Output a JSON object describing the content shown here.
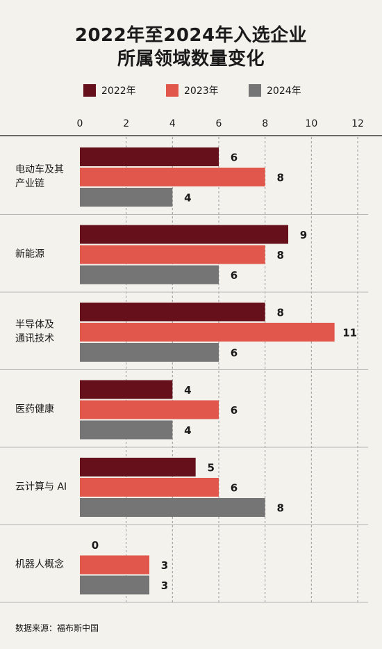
{
  "title_line1": "2022年至2024年入选企业",
  "title_line2": "所属领域数量变化",
  "source": "数据来源：福布斯中国",
  "chart_data": {
    "type": "bar",
    "orientation": "horizontal",
    "categories": [
      [
        "电动车及其",
        "产业链"
      ],
      [
        "新能源"
      ],
      [
        "半导体及",
        "通讯技术"
      ],
      [
        "医药健康"
      ],
      [
        "云计算与 AI"
      ],
      [
        "机器人概念"
      ]
    ],
    "series": [
      {
        "name": "2022年",
        "color": "#65101a",
        "values": [
          6,
          9,
          8,
          4,
          5,
          0
        ]
      },
      {
        "name": "2023年",
        "color": "#e1574c",
        "values": [
          8,
          8,
          11,
          6,
          6,
          3
        ]
      },
      {
        "name": "2024年",
        "color": "#757575",
        "values": [
          4,
          6,
          6,
          4,
          8,
          3
        ]
      }
    ],
    "xlim": [
      0,
      12
    ],
    "xticks": [
      0,
      2,
      4,
      6,
      8,
      10,
      12
    ],
    "grid": "vertical-dashed",
    "legend_position": "top"
  }
}
